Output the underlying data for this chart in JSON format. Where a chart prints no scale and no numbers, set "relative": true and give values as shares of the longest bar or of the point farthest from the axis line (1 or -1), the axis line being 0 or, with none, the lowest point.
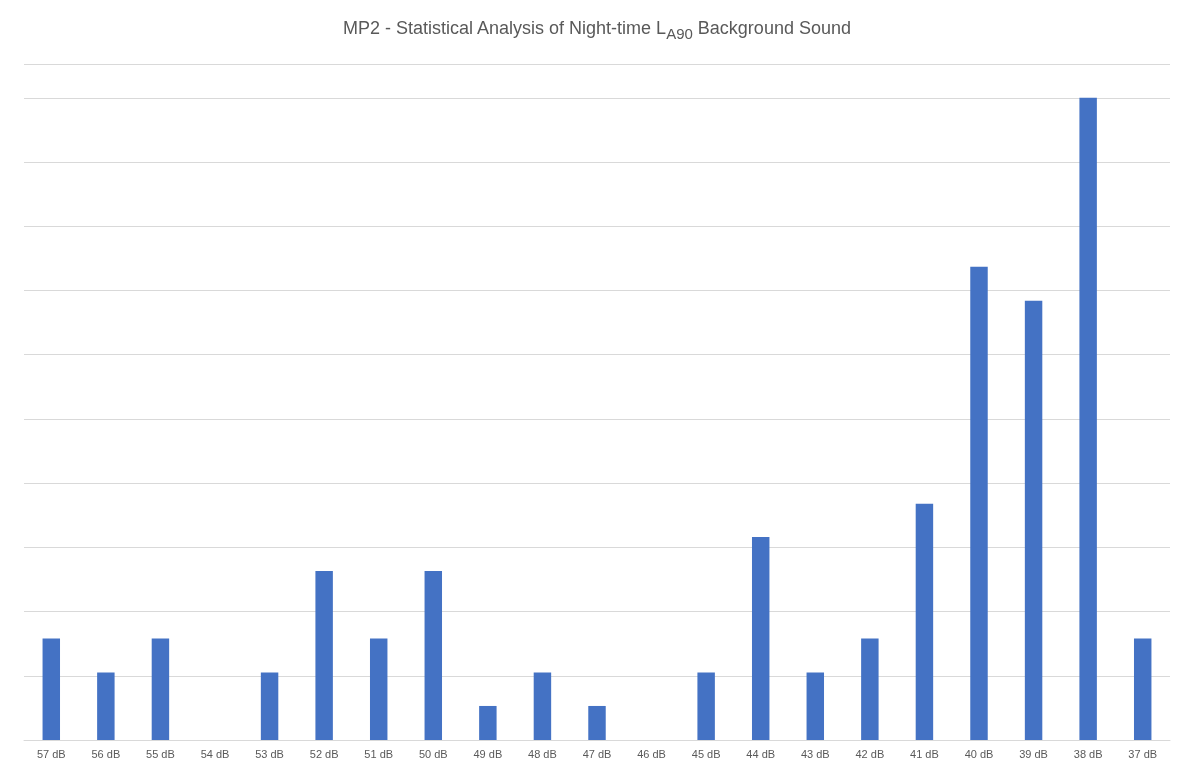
{
  "chart_data": {
    "type": "bar",
    "title": "MP2 - Statistical Analysis of Night-time L$_{A90}$ Background Sound",
    "categories": [
      "57 dB",
      "56 dB",
      "55 dB",
      "54 dB",
      "53 dB",
      "52 dB",
      "51 dB",
      "50 dB",
      "49 dB",
      "48 dB",
      "47 dB",
      "46 dB",
      "45 dB",
      "44 dB",
      "43 dB",
      "42 dB",
      "41 dB",
      "40 dB",
      "39 dB",
      "38 dB",
      "37 dB"
    ],
    "values": [
      0.158,
      0.105,
      0.158,
      0,
      0.105,
      0.263,
      0.158,
      0.263,
      0.053,
      0.105,
      0.053,
      0,
      0.105,
      0.316,
      0.105,
      0.158,
      0.368,
      0.737,
      0.684,
      1,
      0.158
    ],
    "color": "#4472c4",
    "relative": true,
    "grid": "y"
  }
}
